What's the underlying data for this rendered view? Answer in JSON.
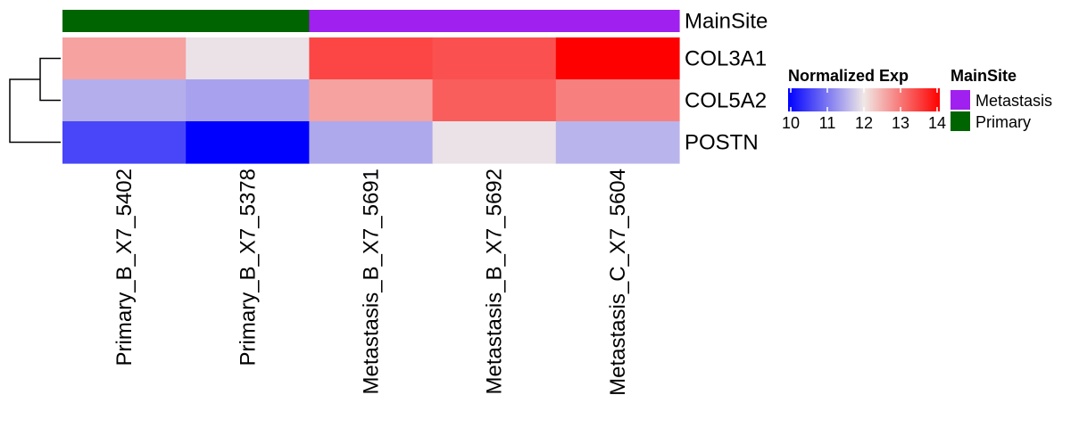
{
  "chart_data": {
    "type": "heatmap",
    "columns": [
      "Primary_B_X7_5402",
      "Primary_B_X7_5378",
      "Metastasis_B_X7_5691",
      "Metastasis_B_X7_5692",
      "Metastasis_C_X7_5604"
    ],
    "rows": [
      "COL3A1",
      "COL5A2",
      "POSTN"
    ],
    "values": [
      [
        12.6,
        11.95,
        13.4,
        13.3,
        14.0
      ],
      [
        11.5,
        11.4,
        12.6,
        13.2,
        12.9
      ],
      [
        10.6,
        10.0,
        11.45,
        11.95,
        11.55
      ]
    ],
    "annotation": {
      "name": "MainSite",
      "values": [
        "Primary",
        "Primary",
        "Metastasis",
        "Metastasis",
        "Metastasis"
      ],
      "colors": {
        "Metastasis": "#A020F0",
        "Primary": "#006400"
      }
    },
    "color_scale": {
      "title": "Normalized Exp",
      "min": 10,
      "mid": 12,
      "max": 14,
      "low_color": "#0000FF",
      "mid_color": "#F0E8E6",
      "high_color": "#FF0000",
      "ticks": [
        "10",
        "11",
        "12",
        "13",
        "14"
      ]
    },
    "annotation_legend": {
      "title": "MainSite",
      "entries": [
        {
          "label": "Metastasis",
          "color": "#A020F0"
        },
        {
          "label": "Primary",
          "color": "#006400"
        }
      ]
    },
    "dendrogram": {
      "side": "left",
      "merges": [
        [
          "COL3A1",
          "COL5A2"
        ],
        [
          [
            "COL3A1",
            "COL5A2"
          ],
          "POSTN"
        ]
      ]
    }
  }
}
